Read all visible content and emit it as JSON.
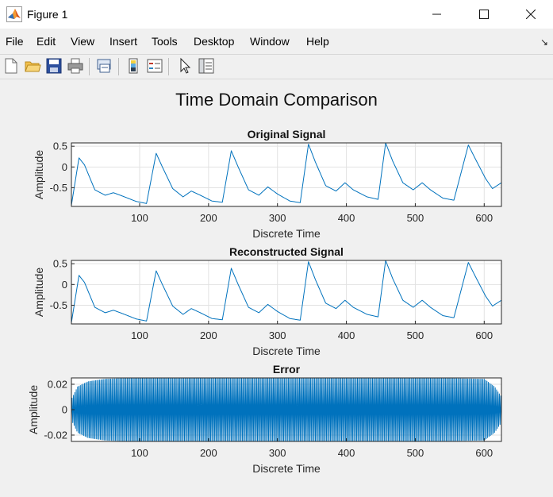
{
  "window": {
    "title": "Figure 1",
    "minimize_icon": "minimize-icon",
    "maximize_icon": "maximize-icon",
    "close_icon": "close-icon"
  },
  "menu": [
    "File",
    "Edit",
    "View",
    "Insert",
    "Tools",
    "Desktop",
    "Window",
    "Help"
  ],
  "toolbar": {
    "icons": [
      "new-figure-icon",
      "open-file-icon",
      "save-icon",
      "print-icon",
      "link-plot-icon",
      "colorbar-icon",
      "legend-icon",
      "pointer-icon",
      "property-editor-icon"
    ]
  },
  "figure": {
    "title": "Time Domain Comparison",
    "plots": [
      {
        "title": "Original Signal",
        "xlabel": "Discrete Time",
        "ylabel": "Amplitude"
      },
      {
        "title": "Reconstructed Signal",
        "xlabel": "Discrete Time",
        "ylabel": "Amplitude"
      },
      {
        "title": "Error",
        "xlabel": "Discrete Time",
        "ylabel": "Amplitude"
      }
    ]
  },
  "colors": {
    "line": "#0072bd",
    "grid": "#e2e2e2",
    "axes_bg": "#ffffff",
    "figure_bg": "#f0f0f0"
  },
  "chart_data": [
    {
      "type": "line",
      "title": "Original Signal",
      "xlabel": "Discrete Time",
      "ylabel": "Amplitude",
      "xlim": [
        1,
        625
      ],
      "ylim": [
        -0.95,
        0.58
      ],
      "xticks": [
        100,
        200,
        300,
        400,
        500,
        600
      ],
      "xtick_labels": [
        "100",
        "200",
        "300",
        "400",
        "500",
        "600"
      ],
      "yticks": [
        0.5,
        0,
        -0.5
      ],
      "ytick_labels": [
        "0.5",
        "0",
        "-0.5"
      ],
      "grid": true,
      "x": [
        1,
        12,
        20,
        35,
        50,
        62,
        75,
        95,
        110,
        124,
        133,
        148,
        163,
        175,
        188,
        205,
        220,
        233,
        243,
        258,
        273,
        286,
        300,
        318,
        333,
        345,
        355,
        370,
        385,
        398,
        410,
        430,
        446,
        457,
        467,
        482,
        497,
        510,
        522,
        540,
        556,
        577,
        587,
        602,
        612,
        625
      ],
      "y": [
        -0.92,
        0.22,
        0.05,
        -0.55,
        -0.68,
        -0.62,
        -0.7,
        -0.83,
        -0.88,
        0.33,
        0.0,
        -0.52,
        -0.72,
        -0.58,
        -0.68,
        -0.82,
        -0.85,
        0.39,
        0.0,
        -0.55,
        -0.68,
        -0.48,
        -0.65,
        -0.82,
        -0.86,
        0.55,
        0.12,
        -0.45,
        -0.58,
        -0.38,
        -0.55,
        -0.72,
        -0.78,
        0.58,
        0.15,
        -0.38,
        -0.55,
        -0.38,
        -0.55,
        -0.75,
        -0.8,
        0.53,
        0.2,
        -0.28,
        -0.52,
        -0.38
      ]
    },
    {
      "type": "line",
      "title": "Reconstructed Signal",
      "xlabel": "Discrete Time",
      "ylabel": "Amplitude",
      "xlim": [
        1,
        625
      ],
      "ylim": [
        -0.95,
        0.58
      ],
      "xticks": [
        100,
        200,
        300,
        400,
        500,
        600
      ],
      "xtick_labels": [
        "100",
        "200",
        "300",
        "400",
        "500",
        "600"
      ],
      "yticks": [
        0.5,
        0,
        -0.5
      ],
      "ytick_labels": [
        "0.5",
        "0",
        "-0.5"
      ],
      "grid": true,
      "x": [
        1,
        12,
        20,
        35,
        50,
        62,
        75,
        95,
        110,
        124,
        133,
        148,
        163,
        175,
        188,
        205,
        220,
        233,
        243,
        258,
        273,
        286,
        300,
        318,
        333,
        345,
        355,
        370,
        385,
        398,
        410,
        430,
        446,
        457,
        467,
        482,
        497,
        510,
        522,
        540,
        556,
        577,
        587,
        602,
        612,
        625
      ],
      "y": [
        -0.92,
        0.22,
        0.05,
        -0.55,
        -0.68,
        -0.62,
        -0.7,
        -0.83,
        -0.88,
        0.33,
        0.0,
        -0.52,
        -0.72,
        -0.58,
        -0.68,
        -0.82,
        -0.85,
        0.39,
        0.0,
        -0.55,
        -0.68,
        -0.48,
        -0.65,
        -0.82,
        -0.86,
        0.55,
        0.12,
        -0.45,
        -0.58,
        -0.38,
        -0.55,
        -0.72,
        -0.78,
        0.58,
        0.15,
        -0.38,
        -0.55,
        -0.38,
        -0.55,
        -0.75,
        -0.8,
        0.53,
        0.2,
        -0.28,
        -0.52,
        -0.38
      ]
    },
    {
      "type": "line",
      "title": "Error",
      "xlabel": "Discrete Time",
      "ylabel": "Amplitude",
      "xlim": [
        1,
        625
      ],
      "ylim": [
        -0.025,
        0.025
      ],
      "xticks": [
        100,
        200,
        300,
        400,
        500,
        600
      ],
      "xtick_labels": [
        "100",
        "200",
        "300",
        "400",
        "500",
        "600"
      ],
      "yticks": [
        0.02,
        0,
        -0.02
      ],
      "ytick_labels": [
        "0.02",
        "0",
        "-0.02"
      ],
      "grid": true,
      "oscillation_period": 2,
      "envelope_x": [
        1,
        10,
        25,
        50,
        100,
        200,
        300,
        400,
        500,
        600,
        615,
        625
      ],
      "envelope_y": [
        0.008,
        0.018,
        0.022,
        0.024,
        0.025,
        0.025,
        0.025,
        0.025,
        0.025,
        0.024,
        0.018,
        0.01
      ]
    }
  ]
}
